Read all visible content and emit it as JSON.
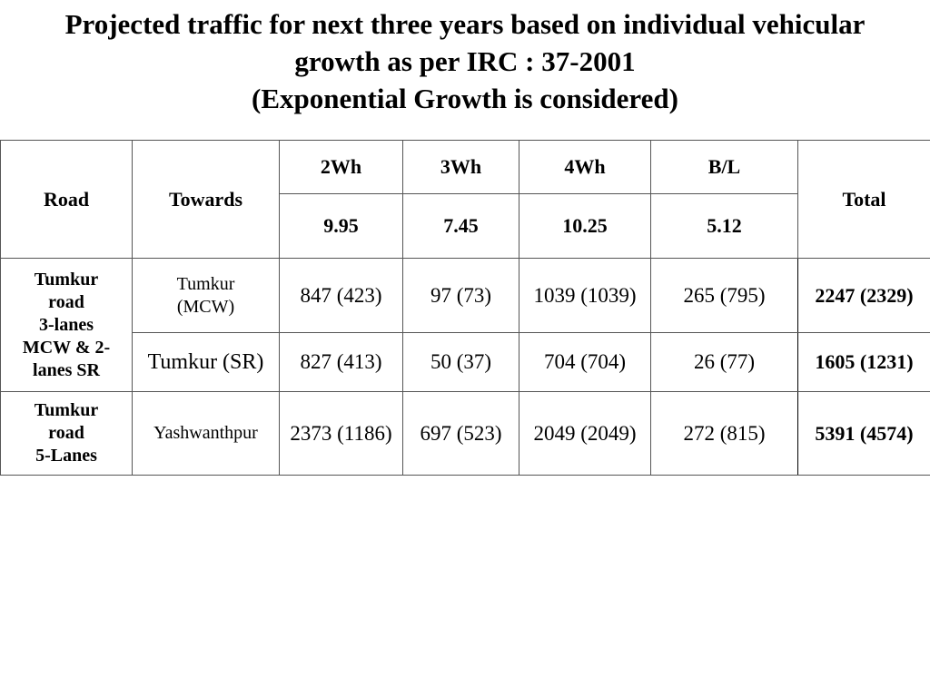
{
  "title": {
    "line1": "Projected traffic for next three years based on individual vehicular",
    "line2": "growth as per IRC : 37-2001",
    "line3": "(Exponential Growth is considered)"
  },
  "table": {
    "headers": {
      "road": "Road",
      "towards": "Towards",
      "total": "Total",
      "vehicles": [
        "2Wh",
        "3Wh",
        "4Wh",
        "B/L"
      ],
      "growth_rates": [
        "9.95",
        "7.45",
        "10.25",
        "5.12"
      ]
    },
    "groups": [
      {
        "road_lines": [
          "Tumkur",
          "road",
          "3-lanes",
          "MCW & 2-",
          "lanes SR"
        ],
        "rows": [
          {
            "towards_lines": [
              "Tumkur",
              "(MCW)"
            ],
            "values": [
              "847 (423)",
              "97 (73)",
              "1039 (1039)",
              "265 (795)"
            ],
            "total": "2247 (2329)"
          },
          {
            "towards": "Tumkur (SR)",
            "values": [
              "827 (413)",
              "50 (37)",
              "704 (704)",
              "26 (77)"
            ],
            "total": "1605 (1231)"
          }
        ]
      },
      {
        "road_lines": [
          "Tumkur",
          "road",
          "5-Lanes"
        ],
        "rows": [
          {
            "towards": "Yashwanthpur",
            "values": [
              "2373 (1186)",
              "697 (523)",
              "2049 (2049)",
              "272 (815)"
            ],
            "total": "5391 (4574)"
          }
        ]
      }
    ]
  }
}
